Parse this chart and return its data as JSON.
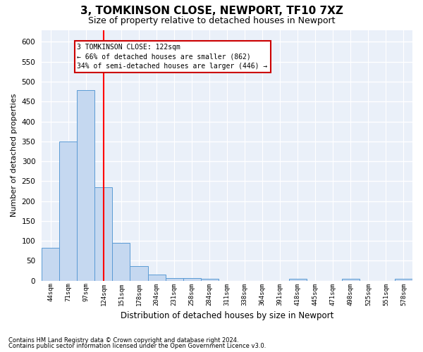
{
  "title1": "3, TOMKINSON CLOSE, NEWPORT, TF10 7XZ",
  "title2": "Size of property relative to detached houses in Newport",
  "xlabel": "Distribution of detached houses by size in Newport",
  "ylabel": "Number of detached properties",
  "bar_color": "#c5d8f0",
  "bar_edge_color": "#5b9bd5",
  "categories": [
    "44sqm",
    "71sqm",
    "97sqm",
    "124sqm",
    "151sqm",
    "178sqm",
    "204sqm",
    "231sqm",
    "258sqm",
    "284sqm",
    "311sqm",
    "338sqm",
    "364sqm",
    "391sqm",
    "418sqm",
    "445sqm",
    "471sqm",
    "498sqm",
    "525sqm",
    "551sqm",
    "578sqm"
  ],
  "values": [
    82,
    350,
    478,
    235,
    95,
    37,
    16,
    7,
    7,
    4,
    0,
    0,
    0,
    0,
    5,
    0,
    0,
    4,
    0,
    0,
    4
  ],
  "red_line_index": 3,
  "annotation_line1": "3 TOMKINSON CLOSE: 122sqm",
  "annotation_line2": "← 66% of detached houses are smaller (862)",
  "annotation_line3": "34% of semi-detached houses are larger (446) →",
  "annotation_box_color": "#ffffff",
  "annotation_box_edge_color": "#cc0000",
  "ylim": [
    0,
    630
  ],
  "yticks": [
    0,
    50,
    100,
    150,
    200,
    250,
    300,
    350,
    400,
    450,
    500,
    550,
    600
  ],
  "footer1": "Contains HM Land Registry data © Crown copyright and database right 2024.",
  "footer2": "Contains public sector information licensed under the Open Government Licence v3.0.",
  "background_color": "#eaf0f9",
  "grid_color": "#ffffff",
  "title1_fontsize": 11,
  "title2_fontsize": 9
}
